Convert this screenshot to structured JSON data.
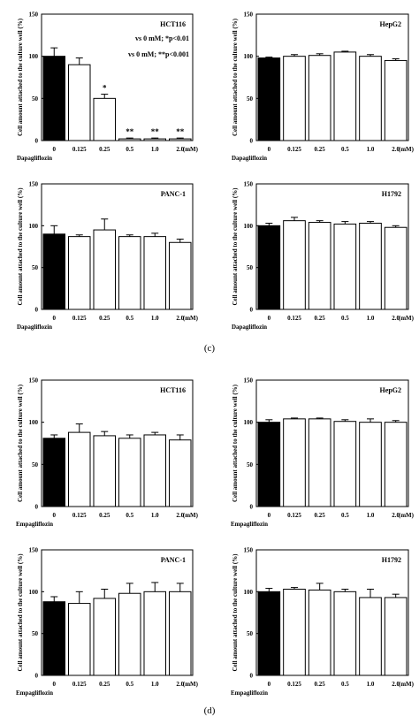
{
  "panel_labels": {
    "c": "(c)",
    "d": "(d)"
  },
  "chart_data": [
    {
      "type": "bar",
      "title": "HCT116",
      "drug": "Dapagliflozin",
      "unit": "(mM)",
      "ylabel": "Cell amount attached to the culture well (%)",
      "categories": [
        "0",
        "0.125",
        "0.25",
        "0.5",
        "1.0",
        "2.0"
      ],
      "values": [
        100,
        90,
        50,
        2,
        2,
        2
      ],
      "errors": [
        10,
        8,
        5,
        1,
        1,
        1
      ],
      "ylim": [
        0,
        150
      ],
      "yticks": [
        "0",
        "50",
        "100",
        "150"
      ],
      "significance": [
        "",
        "",
        "*",
        "**",
        "**",
        "**"
      ],
      "annotations": [
        "vs 0 mM; *p<0.01",
        "vs 0 mM; **p<0.001"
      ],
      "colors": [
        "#000000",
        "#ffffff",
        "#ffffff",
        "#ffffff",
        "#ffffff",
        "#ffffff"
      ]
    },
    {
      "type": "bar",
      "title": "HepG2",
      "drug": "Dapagliflozin",
      "unit": "(mM)",
      "ylabel": "Cell amount attached to the culture well (%)",
      "categories": [
        "0",
        "0.125",
        "0.25",
        "0.5",
        "1.0",
        "2.0"
      ],
      "values": [
        98,
        100,
        101,
        105,
        100,
        95
      ],
      "errors": [
        1,
        2,
        2,
        1,
        2,
        2
      ],
      "ylim": [
        0,
        150
      ],
      "yticks": [
        "0",
        "50",
        "100",
        "150"
      ],
      "significance": [
        "",
        "",
        "",
        "",
        "",
        ""
      ],
      "annotations": [],
      "colors": [
        "#000000",
        "#ffffff",
        "#ffffff",
        "#ffffff",
        "#ffffff",
        "#ffffff"
      ]
    },
    {
      "type": "bar",
      "title": "PANC-1",
      "drug": "Dapagliflozin",
      "unit": "(mM)",
      "ylabel": "Cell amount attached to the culture well (%)",
      "categories": [
        "0",
        "0.125",
        "0.25",
        "0.5",
        "1.0",
        "2.0"
      ],
      "values": [
        90,
        87,
        95,
        87,
        87,
        80
      ],
      "errors": [
        10,
        2,
        13,
        2,
        4,
        4
      ],
      "ylim": [
        0,
        150
      ],
      "yticks": [
        "0",
        "50",
        "100",
        "150"
      ],
      "significance": [
        "",
        "",
        "",
        "",
        "",
        ""
      ],
      "annotations": [],
      "colors": [
        "#000000",
        "#ffffff",
        "#ffffff",
        "#ffffff",
        "#ffffff",
        "#ffffff"
      ]
    },
    {
      "type": "bar",
      "title": "H1792",
      "drug": "Dapagliflozin",
      "unit": "(mM)",
      "ylabel": "Cell amount attached to the culture well (%)",
      "categories": [
        "0",
        "0.125",
        "0.25",
        "0.5",
        "1.0",
        "2.0"
      ],
      "values": [
        100,
        106,
        104,
        102,
        103,
        98
      ],
      "errors": [
        3,
        4,
        2,
        3,
        2,
        2
      ],
      "ylim": [
        0,
        150
      ],
      "yticks": [
        "0",
        "50",
        "100",
        "150"
      ],
      "significance": [
        "",
        "",
        "",
        "",
        "",
        ""
      ],
      "annotations": [],
      "colors": [
        "#000000",
        "#ffffff",
        "#ffffff",
        "#ffffff",
        "#ffffff",
        "#ffffff"
      ]
    },
    {
      "type": "bar",
      "title": "HCT116",
      "drug": "Empagliflozin",
      "unit": "(mM)",
      "ylabel": "Cell amount attached to the culture well (%)",
      "categories": [
        "0",
        "0.125",
        "0.25",
        "0.5",
        "1.0",
        "2.0"
      ],
      "values": [
        81,
        88,
        84,
        81,
        85,
        79
      ],
      "errors": [
        4,
        10,
        5,
        4,
        3,
        6
      ],
      "ylim": [
        0,
        150
      ],
      "yticks": [
        "0",
        "50",
        "100",
        "150"
      ],
      "significance": [
        "",
        "",
        "",
        "",
        "",
        ""
      ],
      "annotations": [],
      "colors": [
        "#000000",
        "#ffffff",
        "#ffffff",
        "#ffffff",
        "#ffffff",
        "#ffffff"
      ]
    },
    {
      "type": "bar",
      "title": "HepG2",
      "drug": "Empagliflozin",
      "unit": "(mM)",
      "ylabel": "Cell amount attached to the culture well (%)",
      "categories": [
        "0",
        "0.125",
        "0.25",
        "0.5",
        "1.0",
        "2.0"
      ],
      "values": [
        100,
        104,
        104,
        101,
        100,
        100
      ],
      "errors": [
        3,
        1,
        1,
        2,
        4,
        2
      ],
      "ylim": [
        0,
        150
      ],
      "yticks": [
        "0",
        "50",
        "100",
        "150"
      ],
      "significance": [
        "",
        "",
        "",
        "",
        "",
        ""
      ],
      "annotations": [],
      "colors": [
        "#000000",
        "#ffffff",
        "#ffffff",
        "#ffffff",
        "#ffffff",
        "#ffffff"
      ]
    },
    {
      "type": "bar",
      "title": "PANC-1",
      "drug": "Empagliflozin",
      "unit": "(mM)",
      "ylabel": "Cell amount attached to the culture well (%)",
      "categories": [
        "0",
        "0.125",
        "0.25",
        "0.5",
        "1.0",
        "2.0"
      ],
      "values": [
        88,
        86,
        92,
        98,
        100,
        100
      ],
      "errors": [
        6,
        14,
        11,
        12,
        11,
        10
      ],
      "ylim": [
        0,
        150
      ],
      "yticks": [
        "0",
        "50",
        "100",
        "150"
      ],
      "significance": [
        "",
        "",
        "",
        "",
        "",
        ""
      ],
      "annotations": [],
      "colors": [
        "#000000",
        "#ffffff",
        "#ffffff",
        "#ffffff",
        "#ffffff",
        "#ffffff"
      ]
    },
    {
      "type": "bar",
      "title": "H1792",
      "drug": "Empagliflozin",
      "unit": "(mM)",
      "ylabel": "Cell amount attached to the culture well (%)",
      "categories": [
        "0",
        "0.125",
        "0.25",
        "0.5",
        "1.0",
        "2.0"
      ],
      "values": [
        100,
        103,
        102,
        100,
        93,
        93
      ],
      "errors": [
        4,
        2,
        8,
        3,
        10,
        4
      ],
      "ylim": [
        0,
        150
      ],
      "yticks": [
        "0",
        "50",
        "100",
        "150"
      ],
      "significance": [
        "",
        "",
        "",
        "",
        "",
        ""
      ],
      "annotations": [],
      "colors": [
        "#000000",
        "#ffffff",
        "#ffffff",
        "#ffffff",
        "#ffffff",
        "#ffffff"
      ]
    }
  ]
}
